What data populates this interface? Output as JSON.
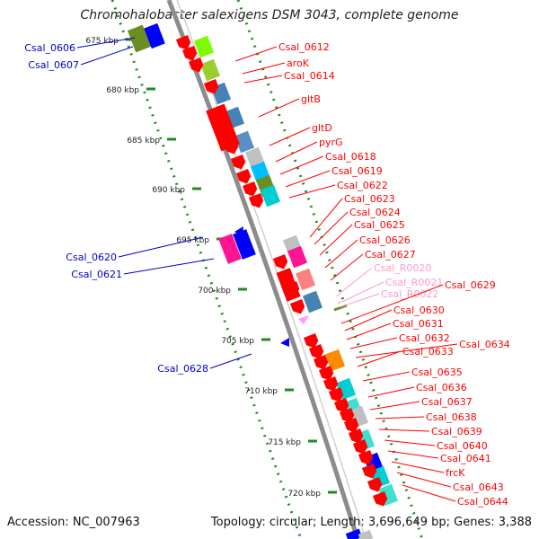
{
  "title": "Chromohalobacter salexigens DSM 3043, complete genome",
  "footer": {
    "accession": "Accession: NC_007963",
    "summary": "Topology: circular; Length: 3,696,649 bp; Genes: 3,388"
  },
  "colors": {
    "backbone": "#8c8c8c",
    "forward_ticks": "#228b22",
    "gene_red": "#ff0000",
    "gene_blue": "#0000ff",
    "label_red": "#ff0000",
    "label_blue": "#0000cc",
    "label_pink": "#ff99cc"
  },
  "ticks": [
    {
      "label": "675 kbp"
    },
    {
      "label": "680 kbp"
    },
    {
      "label": "685 kbp"
    },
    {
      "label": "690 kbp"
    },
    {
      "label": "695 kbp"
    },
    {
      "label": "700 kbp"
    },
    {
      "label": "705 kbp"
    },
    {
      "label": "710 kbp"
    },
    {
      "label": "715 kbp"
    },
    {
      "label": "720 kbp"
    }
  ],
  "labels_left": [
    {
      "text": "Csal_0606"
    },
    {
      "text": "Csal_0607"
    },
    {
      "text": "Csal_0620"
    },
    {
      "text": "Csal_0621"
    },
    {
      "text": "Csal_0628"
    }
  ],
  "labels_right": [
    {
      "text": "Csal_0612",
      "color": "red"
    },
    {
      "text": "aroK",
      "color": "red"
    },
    {
      "text": "Csal_0614",
      "color": "red"
    },
    {
      "text": "gltB",
      "color": "red"
    },
    {
      "text": "gltD",
      "color": "red"
    },
    {
      "text": "pyrG",
      "color": "red"
    },
    {
      "text": "Csal_0618",
      "color": "red"
    },
    {
      "text": "Csal_0619",
      "color": "red"
    },
    {
      "text": "Csal_0622",
      "color": "red"
    },
    {
      "text": "Csal_0623",
      "color": "red"
    },
    {
      "text": "Csal_0624",
      "color": "red"
    },
    {
      "text": "Csal_0625",
      "color": "red"
    },
    {
      "text": "Csal_0626",
      "color": "red"
    },
    {
      "text": "Csal_0627",
      "color": "red"
    },
    {
      "text": "Csal_R0020",
      "color": "pink"
    },
    {
      "text": "Csal_R0021",
      "color": "pink"
    },
    {
      "text": "Csal_R0022",
      "color": "pink"
    },
    {
      "text": "Csal_0629",
      "color": "red"
    },
    {
      "text": "Csal_0630",
      "color": "red"
    },
    {
      "text": "Csal_0631",
      "color": "red"
    },
    {
      "text": "Csal_0632",
      "color": "red"
    },
    {
      "text": "Csal_0634",
      "color": "red"
    },
    {
      "text": "Csal_0633",
      "color": "red"
    },
    {
      "text": "Csal_0635",
      "color": "red"
    },
    {
      "text": "Csal_0636",
      "color": "red"
    },
    {
      "text": "Csal_0637",
      "color": "red"
    },
    {
      "text": "Csal_0638",
      "color": "red"
    },
    {
      "text": "Csal_0639",
      "color": "red"
    },
    {
      "text": "Csal_0640",
      "color": "red"
    },
    {
      "text": "Csal_0641",
      "color": "red"
    },
    {
      "text": "frcK",
      "color": "red"
    },
    {
      "text": "Csal_0643",
      "color": "red"
    },
    {
      "text": "Csal_0644",
      "color": "red"
    }
  ]
}
